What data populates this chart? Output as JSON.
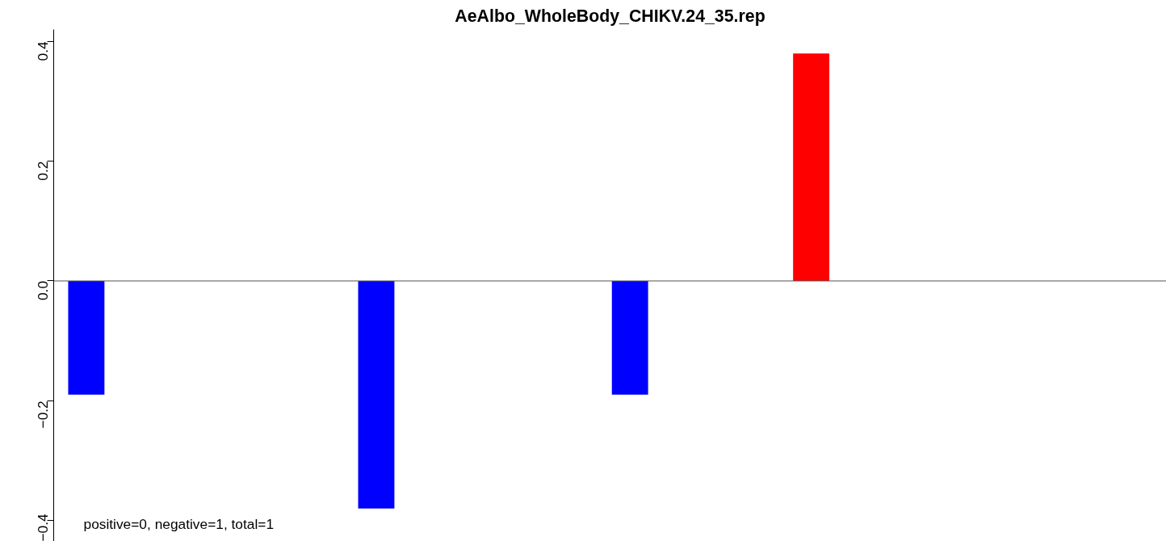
{
  "chart_data": {
    "type": "bar",
    "title": "AeAlbo_WholeBody_CHIKV.24_35.rep",
    "categories": [
      null,
      null,
      null,
      null,
      null,
      null,
      null,
      null,
      null,
      null,
      null,
      null,
      null,
      null,
      null,
      null,
      null,
      null,
      null,
      null,
      null,
      null,
      null,
      null,
      null,
      null,
      null,
      null,
      null,
      null
    ],
    "values": [
      -0.19,
      null,
      null,
      null,
      null,
      null,
      null,
      null,
      -0.38,
      null,
      null,
      null,
      null,
      null,
      null,
      -0.19,
      null,
      null,
      null,
      null,
      0.38,
      null,
      null,
      null,
      null,
      null,
      null,
      null,
      null,
      null
    ],
    "colors": [
      "#0000ff",
      "#0000ff",
      "#0000ff",
      "#0000ff",
      "#0000ff",
      "#0000ff",
      "#0000ff",
      "#0000ff",
      "#0000ff",
      "#0000ff",
      "#0000ff",
      "#0000ff",
      "#0000ff",
      "#0000ff",
      "#0000ff",
      "#0000ff",
      "#0000ff",
      "#0000ff",
      "#0000ff",
      "#0000ff",
      "#ff0000",
      "#0000ff",
      "#0000ff",
      "#0000ff",
      "#0000ff",
      "#0000ff",
      "#0000ff",
      "#0000ff",
      "#0000ff",
      "#0000ff"
    ],
    "ylim": [
      -0.435,
      0.42
    ],
    "yticks": [
      {
        "value": -0.4,
        "label": "−0.4"
      },
      {
        "value": -0.2,
        "label": "−0.2"
      },
      {
        "value": 0,
        "label": "0.0"
      },
      0.2,
      0.4
    ],
    "ref_lines": [
      {
        "axis": "y",
        "value": 0,
        "color": "#555555"
      }
    ],
    "annotations": [
      "positive=0, negative=1, total=1"
    ],
    "grid": false,
    "tick_labels": "y"
  }
}
